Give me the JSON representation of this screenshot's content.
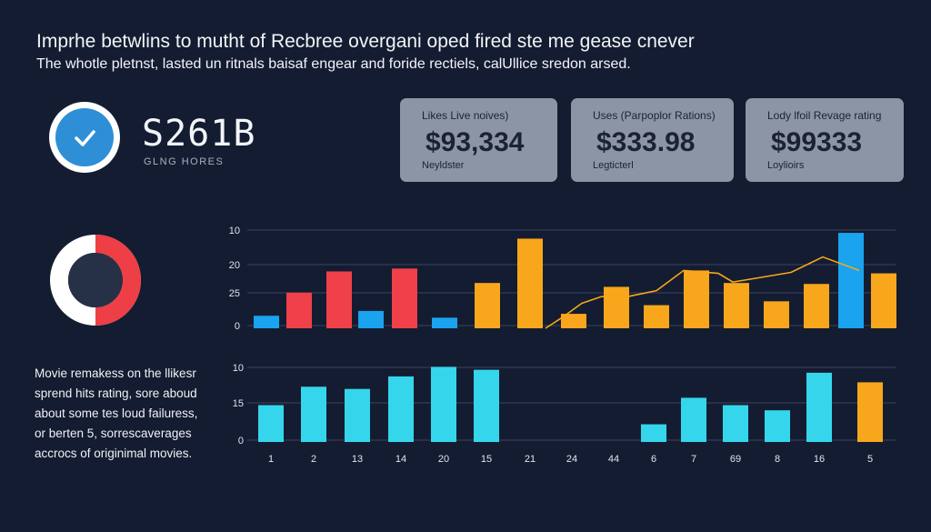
{
  "header": {
    "title": "Imprhe betwlins to mutht of Recbree overgani oped fired ste me gease cnever",
    "subtitle": "The whotle pletnst, lasted un ritnals baisaf engear and foride rectiels, calUllice sredon arsed."
  },
  "hero": {
    "value": "S261B",
    "label": "GLNG HORES"
  },
  "cards": [
    {
      "label": "Likes Live noives)",
      "value": "$93,334",
      "sub": "Neyldster"
    },
    {
      "label": "Uses (Parpoplor Rations)",
      "value": "$333.98",
      "sub": "Legticterl"
    },
    {
      "label": "Lody lfoil Revage rating",
      "value": "$99333",
      "sub": "Loylioirs"
    }
  ],
  "note": [
    "Movie remakess on the llikesr",
    "sprend hits rating, sore aboud",
    "about some tes loud failuress,",
    "or berten 5, sorrescaverages",
    "accrocs of originimal movies."
  ],
  "colors": {
    "background": "#141c31",
    "blue": "#1aa3ee",
    "red": "#f0404a",
    "orange": "#f8a71c",
    "cyan": "#35d6ec",
    "card": "#8c95a6",
    "donut_red": "#ee3e46",
    "donut_white": "#ffffff",
    "donut_center": "#263047"
  },
  "donut": {
    "red_fraction": 0.5
  },
  "chart_data": [
    {
      "type": "bar",
      "title": "",
      "y_tick_labels": [
        "10",
        "20",
        "25",
        "0"
      ],
      "bars": [
        {
          "color": "blue",
          "value": 0.13
        },
        {
          "color": "red",
          "value": 0.37
        },
        {
          "color": "red",
          "value": 0.59
        },
        {
          "color": "blue",
          "value": 0.18
        },
        {
          "color": "red",
          "value": 0.62
        },
        {
          "color": "blue",
          "value": 0.11
        },
        {
          "color": "orange",
          "value": 0.47
        },
        {
          "color": "orange",
          "value": 0.93
        },
        {
          "color": "orange",
          "value": 0.15
        },
        {
          "color": "orange",
          "value": 0.43
        },
        {
          "color": "orange",
          "value": 0.24
        },
        {
          "color": "orange",
          "value": 0.6
        },
        {
          "color": "orange",
          "value": 0.47
        },
        {
          "color": "orange",
          "value": 0.28
        },
        {
          "color": "orange",
          "value": 0.46
        },
        {
          "color": "blue",
          "value": 0.99
        },
        {
          "color": "orange",
          "value": 0.57
        }
      ],
      "line": [
        0.0,
        0.11,
        0.26,
        0.33,
        0.32,
        0.39,
        0.6,
        0.57,
        0.48,
        0.52,
        0.58,
        0.74,
        0.6
      ],
      "ylim": [
        0,
        1
      ]
    },
    {
      "type": "bar",
      "title": "",
      "y_tick_labels": [
        "10",
        "15",
        "0"
      ],
      "x_tick_labels": [
        "1",
        "2",
        "13",
        "14",
        "20",
        "15",
        "21",
        "24",
        "44",
        "6",
        "7",
        "69",
        "8",
        "16",
        "5"
      ],
      "bars": [
        {
          "color": "cyan",
          "value": 0.5
        },
        {
          "color": "cyan",
          "value": 0.75
        },
        {
          "color": "cyan",
          "value": 0.72
        },
        {
          "color": "cyan",
          "value": 0.89
        },
        {
          "color": "cyan",
          "value": 1.02
        },
        {
          "color": "cyan",
          "value": 0.98
        },
        {
          "color": "cyan",
          "value": 0.0
        },
        {
          "color": "cyan",
          "value": 0.0
        },
        {
          "color": "cyan",
          "value": 0.0
        },
        {
          "color": "cyan",
          "value": 0.24
        },
        {
          "color": "cyan",
          "value": 0.6
        },
        {
          "color": "cyan",
          "value": 0.5
        },
        {
          "color": "cyan",
          "value": 0.43
        },
        {
          "color": "cyan",
          "value": 0.94
        },
        {
          "color": "orange",
          "value": 0.81
        }
      ],
      "ylim": [
        0,
        1
      ]
    }
  ]
}
